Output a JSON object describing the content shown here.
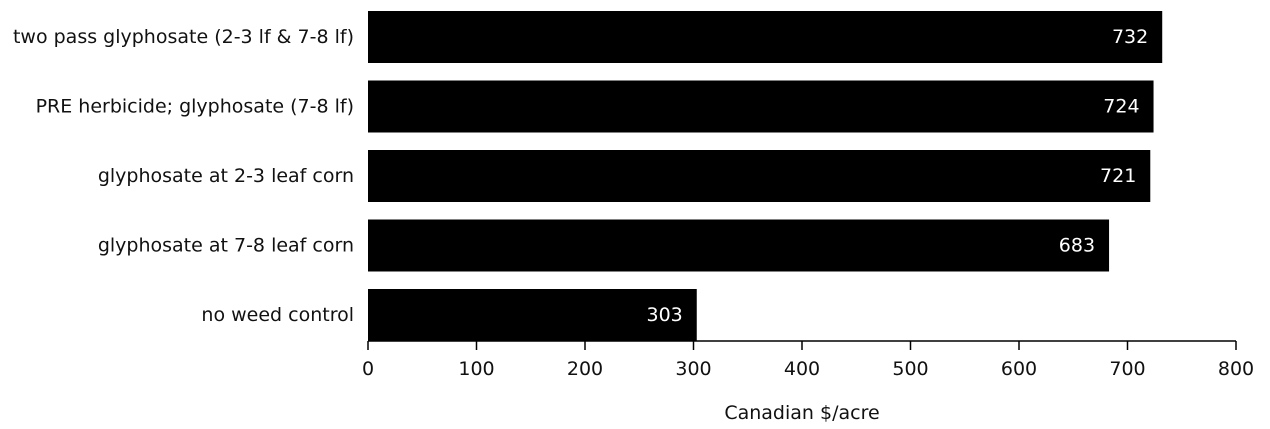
{
  "chart_data": {
    "type": "bar",
    "orientation": "horizontal",
    "categories": [
      "two pass glyphosate (2-3 lf & 7-8 lf)",
      "PRE herbicide; glyphosate (7-8 lf)",
      "glyphosate at 2-3 leaf corn",
      "glyphosate at 7-8 leaf corn",
      "no weed control"
    ],
    "values": [
      732,
      724,
      721,
      683,
      303
    ],
    "data_labels": [
      "732",
      "724",
      "721",
      "683",
      "303"
    ],
    "title": "",
    "xlabel": "Canadian $/acre",
    "ylabel": "",
    "xlim": [
      0,
      800
    ],
    "xticks": [
      0,
      100,
      200,
      300,
      400,
      500,
      600,
      700,
      800
    ],
    "grid": false,
    "legend": "none",
    "bar_color": "#000000",
    "label_color": "#ffffff"
  }
}
